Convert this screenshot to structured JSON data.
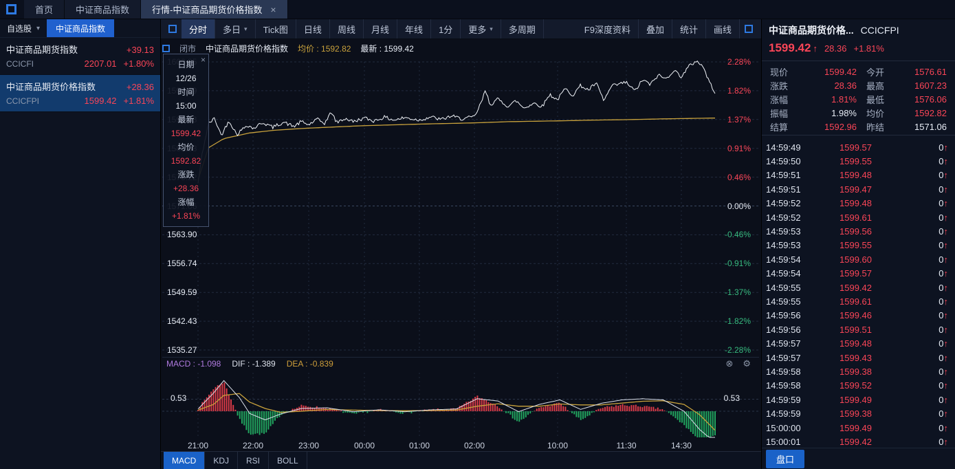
{
  "colors": {
    "up_red": "#fa4557",
    "down_green": "#36b97e",
    "accent_blue": "#1a62c8",
    "avg_yellow": "#c9a23c",
    "macd_purple": "#b07ae0",
    "background": "#0b0f1a",
    "panel": "#0d1321"
  },
  "topbar": {
    "tabs": [
      {
        "label": "首页"
      },
      {
        "label": "中证商品指数"
      },
      {
        "label": "行情-中证商品期货价格指数",
        "close": "×",
        "active": true
      }
    ]
  },
  "watchlist": {
    "dropdown_label": "自选股",
    "caret": "▾",
    "tab_label": "中证商品指数",
    "items": [
      {
        "name": "中证商品期货指数",
        "code": "CCICFI",
        "change": "+39.13",
        "price": "2207.01",
        "pct": "+1.80%",
        "selected": false
      },
      {
        "name": "中证商品期货价格指数",
        "code": "CCICFPI",
        "change": "+28.36",
        "price": "1599.42",
        "pct": "+1.81%",
        "selected": true
      }
    ]
  },
  "toolbar": {
    "items": [
      {
        "label": "分时",
        "active": true
      },
      {
        "label": "多日",
        "caret": true
      },
      {
        "label": "Tick图"
      },
      {
        "label": "日线"
      },
      {
        "label": "周线"
      },
      {
        "label": "月线"
      },
      {
        "label": "年线"
      },
      {
        "label": "1分"
      },
      {
        "label": "更多",
        "caret": true
      },
      {
        "label": "多周期"
      }
    ],
    "right_items": [
      {
        "label": "F9深度资料"
      },
      {
        "label": "叠加"
      },
      {
        "label": "统计"
      },
      {
        "label": "画线"
      }
    ]
  },
  "chart": {
    "header": {
      "market_status": "闭市",
      "title": "中证商品期货价格指数",
      "avg": "均价 : 1592.82",
      "last": "最新 : 1599.42"
    },
    "tooltip": {
      "close": "×",
      "rows": [
        {
          "label": "日期",
          "value": "12/26",
          "color": "white"
        },
        {
          "label": "时间",
          "value": "15:00",
          "color": "white"
        },
        {
          "label": "最新",
          "value": "1599.42",
          "color": "red"
        },
        {
          "label": "均价",
          "value": "1592.82",
          "color": "red"
        },
        {
          "label": "涨跌",
          "value": "+28.36",
          "color": "red"
        },
        {
          "label": "涨幅",
          "value": "+1.81%",
          "color": "red"
        }
      ]
    }
  },
  "indicator_tabs": [
    {
      "label": "MACD",
      "active": true
    },
    {
      "label": "KDJ"
    },
    {
      "label": "RSI"
    },
    {
      "label": "BOLL"
    }
  ],
  "quote": {
    "title": "中证商品期货价格...",
    "code": "CCICFPI",
    "price": "1599.42",
    "arrow": "↑",
    "change": "28.36",
    "pct": "+1.81%",
    "fields": [
      {
        "label": "现价",
        "value": "1599.42",
        "color": "red"
      },
      {
        "label": "今开",
        "value": "1576.61",
        "color": "red"
      },
      {
        "label": "涨跌",
        "value": "28.36",
        "color": "red"
      },
      {
        "label": "最高",
        "value": "1607.23",
        "color": "red"
      },
      {
        "label": "涨幅",
        "value": "1.81%",
        "color": "red"
      },
      {
        "label": "最低",
        "value": "1576.06",
        "color": "red"
      },
      {
        "label": "振幅",
        "value": "1.98%",
        "color": "white"
      },
      {
        "label": "均价",
        "value": "1592.82",
        "color": "red"
      },
      {
        "label": "结算",
        "value": "1592.96",
        "color": "red"
      },
      {
        "label": "昨结",
        "value": "1571.06",
        "color": "white"
      }
    ],
    "ticks": [
      {
        "time": "14:59:49",
        "price": "1599.57",
        "vol": "0",
        "dir": "↑"
      },
      {
        "time": "14:59:50",
        "price": "1599.55",
        "vol": "0",
        "dir": "↑"
      },
      {
        "time": "14:59:51",
        "price": "1599.48",
        "vol": "0",
        "dir": "↑"
      },
      {
        "time": "14:59:51",
        "price": "1599.47",
        "vol": "0",
        "dir": "↑"
      },
      {
        "time": "14:59:52",
        "price": "1599.48",
        "vol": "0",
        "dir": "↑"
      },
      {
        "time": "14:59:52",
        "price": "1599.61",
        "vol": "0",
        "dir": "↑"
      },
      {
        "time": "14:59:53",
        "price": "1599.56",
        "vol": "0",
        "dir": "↑"
      },
      {
        "time": "14:59:53",
        "price": "1599.55",
        "vol": "0",
        "dir": "↑"
      },
      {
        "time": "14:59:54",
        "price": "1599.60",
        "vol": "0",
        "dir": "↑"
      },
      {
        "time": "14:59:54",
        "price": "1599.57",
        "vol": "0",
        "dir": "↑"
      },
      {
        "time": "14:59:55",
        "price": "1599.42",
        "vol": "0",
        "dir": "↑"
      },
      {
        "time": "14:59:55",
        "price": "1599.61",
        "vol": "0",
        "dir": "↑"
      },
      {
        "time": "14:59:56",
        "price": "1599.46",
        "vol": "0",
        "dir": "↑"
      },
      {
        "time": "14:59:56",
        "price": "1599.51",
        "vol": "0",
        "dir": "↑"
      },
      {
        "time": "14:59:57",
        "price": "1599.48",
        "vol": "0",
        "dir": "↑"
      },
      {
        "time": "14:59:57",
        "price": "1599.43",
        "vol": "0",
        "dir": "↑"
      },
      {
        "time": "14:59:58",
        "price": "1599.38",
        "vol": "0",
        "dir": "↑"
      },
      {
        "time": "14:59:58",
        "price": "1599.52",
        "vol": "0",
        "dir": "↑"
      },
      {
        "time": "14:59:59",
        "price": "1599.49",
        "vol": "0",
        "dir": "↑"
      },
      {
        "time": "14:59:59",
        "price": "1599.38",
        "vol": "0",
        "dir": "↑"
      },
      {
        "time": "15:00:00",
        "price": "1599.49",
        "vol": "0",
        "dir": "↑"
      },
      {
        "time": "15:00:01",
        "price": "1599.42",
        "vol": "0",
        "dir": "↑"
      }
    ],
    "footer_button": "盘口"
  },
  "chart_data": {
    "type": "line",
    "title": "中证商品期货价格指数 分时",
    "prev_settle": 1571.06,
    "open": 1576.61,
    "high": 1607.23,
    "low": 1576.06,
    "last": 1599.42,
    "avg": 1592.82,
    "y_axis_left": [
      1606.85,
      1599.69,
      1592.53,
      1585.38,
      1578.22,
      1571.06,
      1563.9,
      1556.74,
      1549.59,
      1542.43,
      1535.27
    ],
    "y_axis_right": [
      "2.28%",
      "1.82%",
      "1.37%",
      "0.91%",
      "0.46%",
      "0.00%",
      "-0.46%",
      "-0.91%",
      "-1.37%",
      "-1.82%",
      "-2.28%"
    ],
    "x_ticks": [
      {
        "label": "21:00",
        "t": 0
      },
      {
        "label": "22:00",
        "t": 0.1064
      },
      {
        "label": "23:00",
        "t": 0.2141
      },
      {
        "label": "00:00",
        "t": 0.3218
      },
      {
        "label": "01:00",
        "t": 0.4282
      },
      {
        "label": "02:00",
        "t": 0.5346
      },
      {
        "label": "10:00",
        "t": 0.6955
      },
      {
        "label": "11:30",
        "t": 0.8285
      },
      {
        "label": "14:30",
        "t": 0.9348
      }
    ],
    "price_anchors": [
      [
        0,
        1576.6
      ],
      [
        0.008,
        1584
      ],
      [
        0.02,
        1591.5
      ],
      [
        0.032,
        1592.8
      ],
      [
        0.045,
        1588.6
      ],
      [
        0.06,
        1592.3
      ],
      [
        0.075,
        1588.8
      ],
      [
        0.095,
        1591.2
      ],
      [
        0.107,
        1590.3
      ],
      [
        0.125,
        1591.8
      ],
      [
        0.145,
        1590.6
      ],
      [
        0.165,
        1591.9
      ],
      [
        0.185,
        1590.8
      ],
      [
        0.2,
        1592
      ],
      [
        0.214,
        1591.2
      ],
      [
        0.23,
        1592.6
      ],
      [
        0.245,
        1591.6
      ],
      [
        0.258,
        1594.4
      ],
      [
        0.268,
        1591.8
      ],
      [
        0.285,
        1592.8
      ],
      [
        0.3,
        1592
      ],
      [
        0.322,
        1592.9
      ],
      [
        0.34,
        1592.2
      ],
      [
        0.36,
        1593.1
      ],
      [
        0.38,
        1592.4
      ],
      [
        0.4,
        1593
      ],
      [
        0.428,
        1592.4
      ],
      [
        0.45,
        1593.2
      ],
      [
        0.47,
        1592.5
      ],
      [
        0.49,
        1593.4
      ],
      [
        0.51,
        1592.7
      ],
      [
        0.535,
        1593.2
      ],
      [
        0.548,
        1596.8
      ],
      [
        0.556,
        1599.8
      ],
      [
        0.565,
        1596.2
      ],
      [
        0.58,
        1597.6
      ],
      [
        0.6,
        1595.8
      ],
      [
        0.615,
        1597.2
      ],
      [
        0.63,
        1595.4
      ],
      [
        0.65,
        1596.6
      ],
      [
        0.666,
        1595.8
      ],
      [
        0.68,
        1598.8
      ],
      [
        0.695,
        1597.4
      ],
      [
        0.71,
        1600.2
      ],
      [
        0.725,
        1598.6
      ],
      [
        0.74,
        1601
      ],
      [
        0.755,
        1599.8
      ],
      [
        0.77,
        1601.6
      ],
      [
        0.785,
        1597.2
      ],
      [
        0.8,
        1600.8
      ],
      [
        0.828,
        1601.8
      ],
      [
        0.845,
        1599.6
      ],
      [
        0.86,
        1602.4
      ],
      [
        0.875,
        1601.2
      ],
      [
        0.89,
        1603.6
      ],
      [
        0.905,
        1602.6
      ],
      [
        0.92,
        1604.8
      ],
      [
        0.935,
        1603.2
      ],
      [
        0.95,
        1605.8
      ],
      [
        0.965,
        1607.2
      ],
      [
        0.978,
        1605.4
      ],
      [
        0.99,
        1601.5
      ],
      [
        1,
        1599.42
      ]
    ],
    "avg_anchors": [
      [
        0,
        1577.5
      ],
      [
        0.02,
        1585.5
      ],
      [
        0.05,
        1587.8
      ],
      [
        0.1,
        1589.2
      ],
      [
        0.15,
        1589.9
      ],
      [
        0.214,
        1590.4
      ],
      [
        0.32,
        1591
      ],
      [
        0.43,
        1591.4
      ],
      [
        0.535,
        1591.7
      ],
      [
        0.6,
        1592
      ],
      [
        0.695,
        1592.2
      ],
      [
        0.77,
        1592.4
      ],
      [
        0.83,
        1592.5
      ],
      [
        0.9,
        1592.7
      ],
      [
        1,
        1592.9
      ]
    ],
    "macd": {
      "label_macd": "MACD : -1.098",
      "label_dif": "DIF : -1.389",
      "label_dea": "DEA : -0.839",
      "axis_label": "0.53",
      "dif_anchors": [
        [
          0,
          0.1
        ],
        [
          0.03,
          0.8
        ],
        [
          0.05,
          1.35
        ],
        [
          0.08,
          0.6
        ],
        [
          0.1,
          -0.1
        ],
        [
          0.13,
          -0.38
        ],
        [
          0.16,
          -0.12
        ],
        [
          0.2,
          0.12
        ],
        [
          0.25,
          0.15
        ],
        [
          0.3,
          -0.02
        ],
        [
          0.35,
          0.06
        ],
        [
          0.4,
          -0.02
        ],
        [
          0.45,
          0.06
        ],
        [
          0.5,
          0.1
        ],
        [
          0.54,
          0.55
        ],
        [
          0.58,
          0.45
        ],
        [
          0.62,
          -0.02
        ],
        [
          0.66,
          0.3
        ],
        [
          0.7,
          0.5
        ],
        [
          0.74,
          0.08
        ],
        [
          0.78,
          0.35
        ],
        [
          0.82,
          0.5
        ],
        [
          0.86,
          0.55
        ],
        [
          0.9,
          0.5
        ],
        [
          0.94,
          0
        ],
        [
          0.97,
          -0.8
        ],
        [
          1,
          -1.389
        ]
      ],
      "dea_anchors": [
        [
          0,
          0.05
        ],
        [
          0.03,
          0.3
        ],
        [
          0.05,
          0.7
        ],
        [
          0.08,
          0.78
        ],
        [
          0.1,
          0.4
        ],
        [
          0.13,
          0.12
        ],
        [
          0.16,
          -0.05
        ],
        [
          0.2,
          0
        ],
        [
          0.25,
          0.08
        ],
        [
          0.3,
          0.05
        ],
        [
          0.35,
          0.03
        ],
        [
          0.4,
          0.02
        ],
        [
          0.45,
          0.03
        ],
        [
          0.5,
          0.05
        ],
        [
          0.54,
          0.22
        ],
        [
          0.58,
          0.33
        ],
        [
          0.62,
          0.22
        ],
        [
          0.66,
          0.22
        ],
        [
          0.7,
          0.32
        ],
        [
          0.74,
          0.28
        ],
        [
          0.78,
          0.28
        ],
        [
          0.82,
          0.36
        ],
        [
          0.86,
          0.44
        ],
        [
          0.9,
          0.46
        ],
        [
          0.94,
          0.3
        ],
        [
          0.97,
          -0.15
        ],
        [
          1,
          -0.839
        ]
      ]
    }
  }
}
